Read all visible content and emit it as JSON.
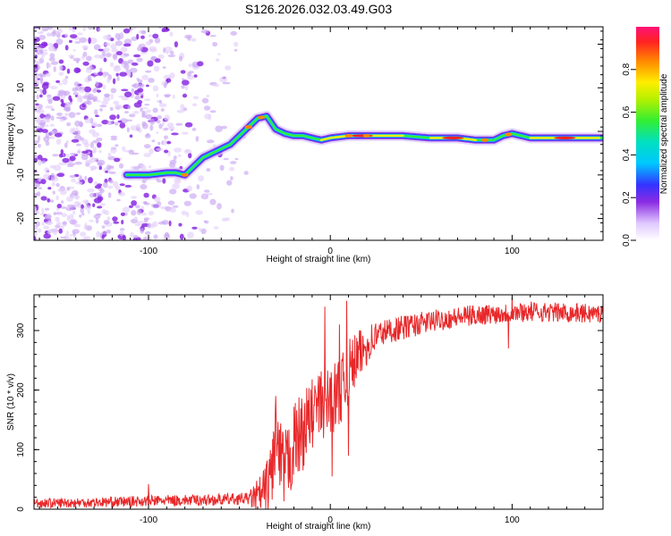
{
  "title": "S126.2026.032.03.49.G03",
  "chart_data": [
    {
      "type": "heatmap",
      "title": "S126.2026.032.03.49.G03",
      "xlabel": "Height of straight line (km)",
      "ylabel": "Frequency (Hz)",
      "xlim": [
        -163,
        150
      ],
      "ylim": [
        -25,
        24
      ],
      "x_ticks": [
        "-100",
        "0",
        "100"
      ],
      "x_tick_values": [
        -100,
        0,
        100
      ],
      "y_ticks": [
        "-20",
        "-10",
        "0",
        "10",
        "20"
      ],
      "y_tick_values": [
        -20,
        -10,
        0,
        10,
        20
      ],
      "ridge": {
        "x": [
          -110,
          -100,
          -90,
          -85,
          -80,
          -75,
          -70,
          -65,
          -60,
          -55,
          -50,
          -45,
          -40,
          -35,
          -30,
          -25,
          -20,
          -15,
          -10,
          -5,
          0,
          10,
          20,
          40,
          55,
          70,
          80,
          85,
          90,
          95,
          100,
          110,
          130,
          148
        ],
        "freq": [
          -10,
          -10,
          -9.5,
          -9.5,
          -10,
          -8,
          -6,
          -5,
          -4,
          -3,
          -1,
          1,
          3,
          3.5,
          0.5,
          -0.5,
          -1,
          -1,
          -1.5,
          -2,
          -1.5,
          -1,
          -1,
          -1,
          -1.5,
          -1.5,
          -2,
          -2,
          -2,
          -1,
          -0.5,
          -1.5,
          -1.5,
          -1.5
        ]
      },
      "colorbar": {
        "label": "Normalized spectral amplitude",
        "ticks": [
          "0.0",
          "0.2",
          "0.4",
          "0.6",
          "0.8"
        ],
        "tick_values": [
          0.0,
          0.2,
          0.4,
          0.6,
          0.8
        ],
        "range": [
          0,
          1
        ]
      }
    },
    {
      "type": "line",
      "xlabel": "Height of straight line (km)",
      "ylabel": "SNR (10 * v/v)",
      "xlim": [
        -163,
        150
      ],
      "ylim": [
        0,
        360
      ],
      "x_ticks": [
        "-100",
        "0",
        "100"
      ],
      "x_tick_values": [
        -100,
        0,
        100
      ],
      "y_ticks": [
        "0",
        "100",
        "200",
        "300"
      ],
      "y_tick_values": [
        0,
        100,
        200,
        300
      ],
      "color": "#e8282a",
      "trend": {
        "x": [
          -163,
          -140,
          -120,
          -100,
          -80,
          -60,
          -45,
          -38,
          -35,
          -32,
          -30,
          -28,
          -25,
          -22,
          -20,
          -18,
          -15,
          -12,
          -10,
          -8,
          -5,
          -2,
          0,
          3,
          5,
          8,
          10,
          13,
          15,
          18,
          20,
          25,
          30,
          40,
          50,
          60,
          70,
          80,
          90,
          100,
          110,
          120,
          130,
          140,
          150
        ],
        "y": [
          10,
          11,
          12,
          14,
          15,
          16,
          18,
          22,
          30,
          70,
          120,
          80,
          60,
          90,
          110,
          120,
          130,
          150,
          160,
          170,
          175,
          180,
          185,
          190,
          200,
          210,
          230,
          245,
          255,
          265,
          275,
          290,
          298,
          305,
          312,
          318,
          322,
          326,
          328,
          330,
          332,
          331,
          330,
          329,
          328
        ]
      },
      "noise": {
        "x": [
          -163,
          -45,
          -38,
          -30,
          -20,
          -10,
          0,
          10,
          20,
          30,
          60,
          150
        ],
        "amp": [
          8,
          10,
          40,
          70,
          70,
          60,
          60,
          55,
          35,
          22,
          18,
          16
        ]
      },
      "spikes": [
        {
          "x": -100,
          "y": 42
        },
        {
          "x": -30,
          "y": 190
        },
        {
          "x": -3,
          "y": 340
        },
        {
          "x": 1,
          "y": 55
        },
        {
          "x": 5,
          "y": 310
        },
        {
          "x": 9,
          "y": 350
        },
        {
          "x": 10,
          "y": 90
        },
        {
          "x": 98,
          "y": 270
        },
        {
          "x": 100,
          "y": 355
        }
      ]
    }
  ]
}
